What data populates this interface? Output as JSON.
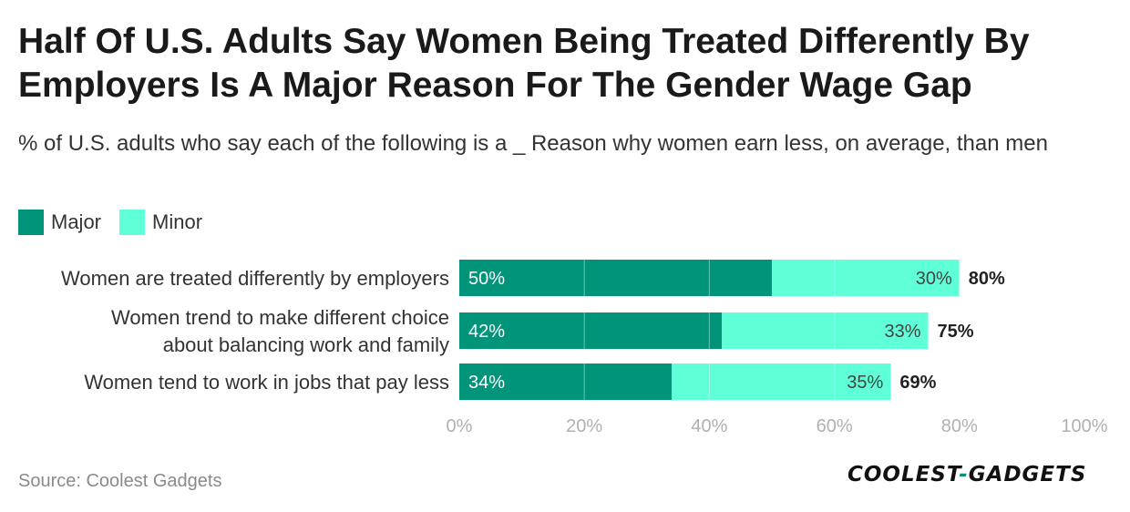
{
  "title": "Half Of U.S. Adults Say Women Being Treated Differently By Employers Is A Major Reason For The Gender Wage Gap",
  "subtitle": "% of U.S. adults who say each of the following is a _ Reason why women earn less, on average, than men",
  "source": "Source: Coolest Gadgets",
  "logo_text": "COOLEST-GADGETS",
  "colors": {
    "major": "#00957A",
    "minor": "#5FFFD7",
    "grid": "#e0e0e0",
    "axis_text": "#b0b0b0",
    "logo_dash": "#00957A"
  },
  "chart_data": {
    "type": "bar",
    "orientation": "horizontal",
    "stacked": true,
    "categories": [
      "Women are treated differently by employers",
      "Women trend to make different choice about balancing work and family",
      "Women tend to work in jobs that pay less"
    ],
    "series": [
      {
        "name": "Major",
        "values": [
          50,
          42,
          34
        ],
        "labels": [
          "50%",
          "42%",
          "34%"
        ]
      },
      {
        "name": "Minor",
        "values": [
          30,
          33,
          35
        ],
        "labels": [
          "30%",
          "33%",
          "35%"
        ]
      }
    ],
    "totals": [
      "80%",
      "75%",
      "69%"
    ],
    "xlim": [
      0,
      100
    ],
    "xticks": [
      "0%",
      "20%",
      "40%",
      "60%",
      "80%",
      "100%"
    ],
    "grid": true,
    "legend": "top-left"
  }
}
